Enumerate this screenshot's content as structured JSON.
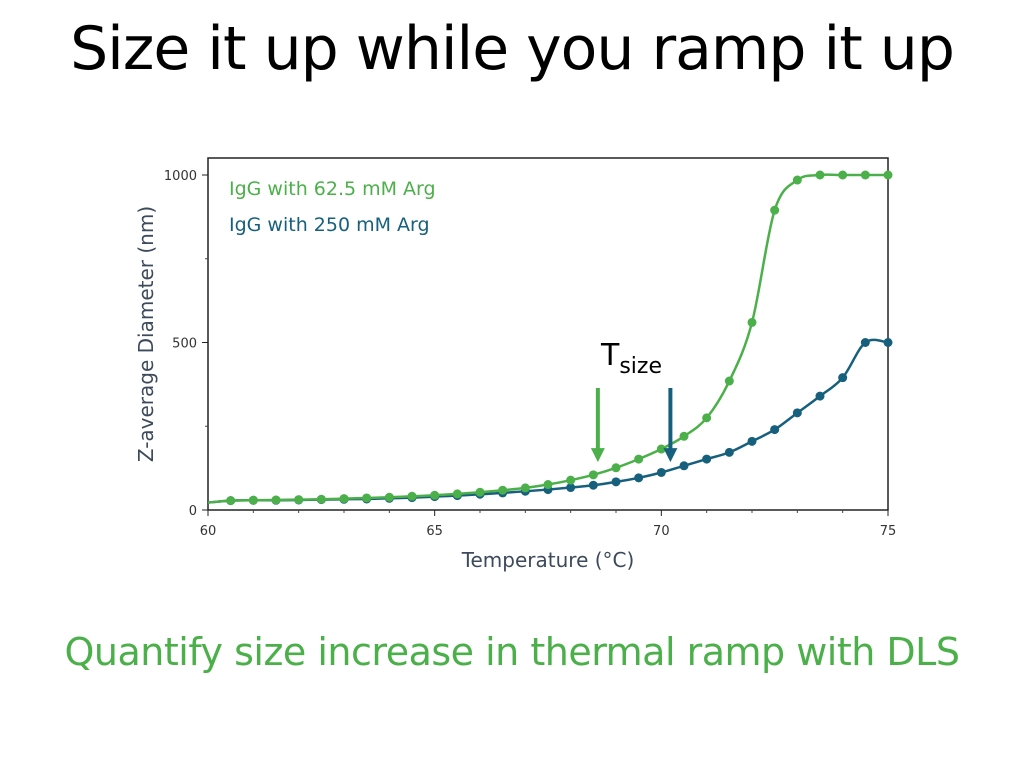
{
  "slide": {
    "title": "Size it up while you ramp it up",
    "subtitle": "Quantify size increase in thermal ramp with DLS",
    "subtitle_color": "#4cb04a"
  },
  "chart_data": {
    "type": "line",
    "xlabel": "Temperature (°C)",
    "ylabel": "Z-average Diameter (nm)",
    "xlim": [
      60,
      75
    ],
    "ylim": [
      0,
      1000
    ],
    "x_ticks": [
      60,
      65,
      70,
      75
    ],
    "y_ticks": [
      0,
      500,
      1000
    ],
    "grid": false,
    "legend_position": "top-left",
    "series": [
      {
        "name": "IgG with 62.5 mM Arg",
        "color": "#4cb04a",
        "x": [
          60.5,
          61.0,
          61.5,
          62.0,
          62.5,
          63.0,
          63.5,
          64.0,
          64.5,
          65.0,
          65.5,
          66.0,
          66.5,
          67.0,
          67.5,
          68.0,
          68.5,
          69.0,
          69.5,
          70.0,
          70.5,
          71.0,
          71.5,
          72.0,
          72.5,
          73.0,
          73.5,
          74.0,
          74.5,
          75.0
        ],
        "y": [
          28,
          29,
          30,
          31,
          32,
          34,
          36,
          38,
          41,
          44,
          48,
          53,
          59,
          66,
          76,
          89,
          105,
          126,
          152,
          182,
          220,
          275,
          385,
          560,
          895,
          985,
          1000,
          1000,
          1000,
          1000
        ]
      },
      {
        "name": "IgG with 250 mM Arg",
        "color": "#17607d",
        "x": [
          60.5,
          61.0,
          61.5,
          62.0,
          62.5,
          63.0,
          63.5,
          64.0,
          64.5,
          65.0,
          65.5,
          66.0,
          66.5,
          67.0,
          67.5,
          68.0,
          68.5,
          69.0,
          69.5,
          70.0,
          70.5,
          71.0,
          71.5,
          72.0,
          72.5,
          73.0,
          73.5,
          74.0,
          74.5,
          75.0
        ],
        "y": [
          28,
          29,
          29,
          30,
          31,
          32,
          33,
          35,
          37,
          40,
          43,
          47,
          51,
          56,
          61,
          67,
          74,
          84,
          96,
          112,
          132,
          152,
          172,
          205,
          240,
          290,
          340,
          395,
          500,
          500
        ]
      }
    ],
    "annotation": {
      "text": "T",
      "subscript": "size",
      "arrows": [
        {
          "series": "IgG with 62.5 mM Arg",
          "x": 68.6,
          "y_tip": 125
        },
        {
          "series": "IgG with 250 mM Arg",
          "x": 70.2,
          "y_tip": 125
        }
      ]
    }
  }
}
